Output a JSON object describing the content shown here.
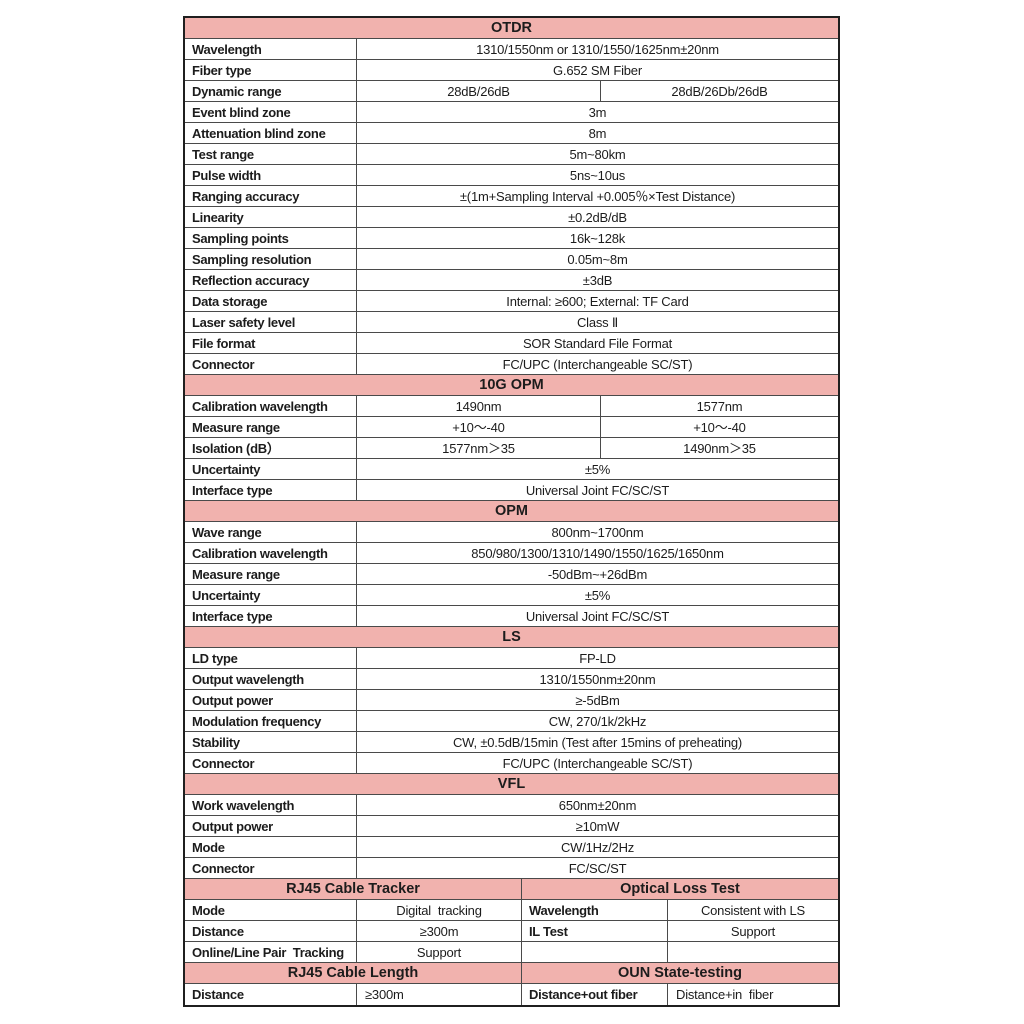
{
  "table": {
    "header_bg": "#f1b2ae",
    "border_color": "#4a4a4a",
    "sections": [
      {
        "title": "OTDR",
        "rows": [
          {
            "label": "Wavelength",
            "value": "1310/1550nm or 1310/1550/1625nm±20nm"
          },
          {
            "label": "Fiber type",
            "value": "G.652 SM Fiber"
          },
          {
            "label": "Dynamic range",
            "values": [
              "28dB/26dB",
              "28dB/26Db/26dB"
            ]
          },
          {
            "label": "Event blind zone",
            "value": "3m"
          },
          {
            "label": "Attenuation blind zone",
            "value": "8m"
          },
          {
            "label": "Test range",
            "value": "5m~80km"
          },
          {
            "label": "Pulse width",
            "value": "5ns~10us"
          },
          {
            "label": "Ranging accuracy",
            "value": "±(1m+Sampling Interval +0.005％×Test Distance)"
          },
          {
            "label": "Linearity",
            "value": "±0.2dB/dB"
          },
          {
            "label": "Sampling points",
            "value": "16k~128k"
          },
          {
            "label": "Sampling resolution",
            "value": "0.05m~8m"
          },
          {
            "label": "Reflection accuracy",
            "value": "±3dB"
          },
          {
            "label": "Data storage",
            "value": "Internal: ≥600; External: TF Card"
          },
          {
            "label": "Laser safety level",
            "value": "Class Ⅱ"
          },
          {
            "label": "File format",
            "value": "SOR Standard File Format"
          },
          {
            "label": "Connector",
            "value": "FC/UPC (Interchangeable SC/ST)"
          }
        ]
      },
      {
        "title": "10G OPM",
        "rows": [
          {
            "label": "Calibration wavelength",
            "values": [
              "1490nm",
              "1577nm"
            ]
          },
          {
            "label": "Measure range",
            "values": [
              "+10～-40",
              "+10～-40"
            ]
          },
          {
            "label": "Isolation (dB）",
            "values": [
              "1577nm＞35",
              "1490nm＞35"
            ]
          },
          {
            "label": "Uncertainty",
            "value": "±5%"
          },
          {
            "label": "Interface type",
            "value": "Universal Joint FC/SC/ST"
          }
        ]
      },
      {
        "title": "OPM",
        "rows": [
          {
            "label": "Wave range",
            "value": "800nm~1700nm"
          },
          {
            "label": "Calibration wavelength",
            "value": "850/980/1300/1310/1490/1550/1625/1650nm"
          },
          {
            "label": "Measure range",
            "value": "-50dBm~+26dBm"
          },
          {
            "label": "Uncertainty",
            "value": "±5%"
          },
          {
            "label": "Interface type",
            "value": "Universal Joint FC/SC/ST"
          }
        ]
      },
      {
        "title": "LS",
        "rows": [
          {
            "label": "LD type",
            "value": "FP-LD"
          },
          {
            "label": "Output wavelength",
            "value": "1310/1550nm±20nm"
          },
          {
            "label": "Output power",
            "value": "≥-5dBm"
          },
          {
            "label": "Modulation frequency",
            "value": "CW, 270/1k/2kHz"
          },
          {
            "label": "Stability",
            "value": "CW, ±0.5dB/15min (Test after 15mins of preheating)"
          },
          {
            "label": "Connector",
            "value": "FC/UPC (Interchangeable SC/ST)"
          }
        ]
      },
      {
        "title": "VFL",
        "rows": [
          {
            "label": "Work wavelength",
            "value": "650nm±20nm"
          },
          {
            "label": "Output power",
            "value": "≥10mW"
          },
          {
            "label": "Mode",
            "value": "CW/1Hz/2Hz"
          },
          {
            "label": "Connector",
            "value": "FC/SC/ST"
          }
        ]
      }
    ],
    "dual_sections": [
      {
        "left_title": "RJ45 Cable Tracker",
        "right_title": "Optical Loss Test",
        "rows": [
          {
            "left_label": "Mode",
            "left_value": "Digital  tracking",
            "right_label": "Wavelength",
            "right_value": "Consistent with LS"
          },
          {
            "left_label": "Distance",
            "left_value": "≥300m",
            "right_label": "IL Test",
            "right_value": "Support"
          },
          {
            "left_label": "Online/Line Pair  Tracking",
            "left_value": "Support",
            "right_label": "",
            "right_value": ""
          }
        ]
      },
      {
        "left_title": "RJ45 Cable Length",
        "right_title": "OUN State-testing",
        "rows": [
          {
            "left_label": "Distance",
            "left_value": "≥300m",
            "left_align": "left",
            "right_label": "Distance+out fiber",
            "right_value": "Distance+in  fiber",
            "right_align": "left"
          }
        ]
      }
    ]
  }
}
